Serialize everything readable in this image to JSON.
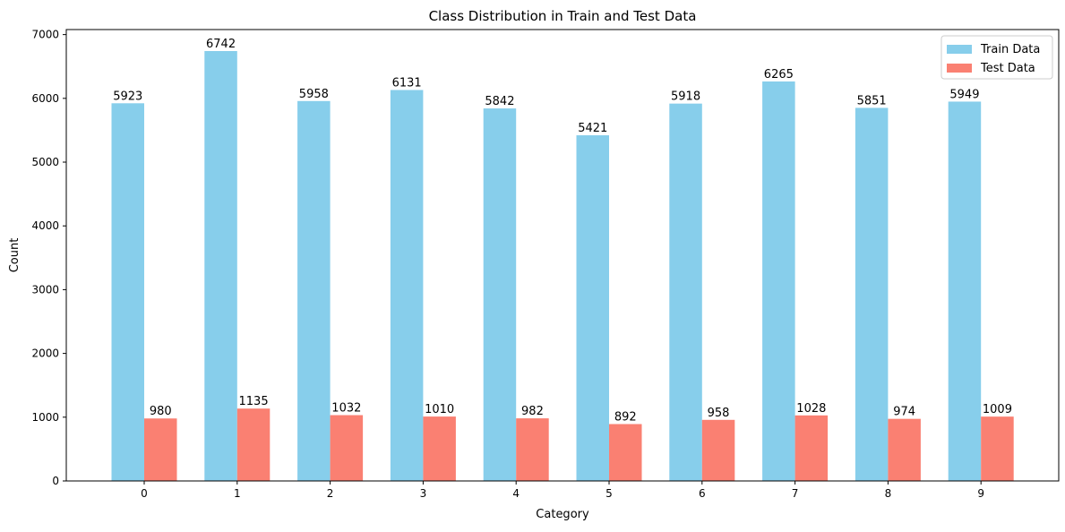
{
  "chart_data": {
    "type": "bar",
    "title": "Class Distribution in Train and Test Data",
    "xlabel": "Category",
    "ylabel": "Count",
    "categories": [
      "0",
      "1",
      "2",
      "3",
      "4",
      "5",
      "6",
      "7",
      "8",
      "9"
    ],
    "series": [
      {
        "name": "Train Data",
        "color": "#87CEEB",
        "values": [
          5923,
          6742,
          5958,
          6131,
          5842,
          5421,
          5918,
          6265,
          5851,
          5949
        ]
      },
      {
        "name": "Test Data",
        "color": "#FA8072",
        "values": [
          980,
          1135,
          1032,
          1010,
          982,
          892,
          958,
          1028,
          974,
          1009
        ]
      }
    ],
    "ylim": [
      0,
      7079
    ],
    "yticks": [
      0,
      1000,
      2000,
      3000,
      4000,
      5000,
      6000,
      7000
    ],
    "grid": false,
    "legend": "top-right",
    "data_labels": true
  }
}
